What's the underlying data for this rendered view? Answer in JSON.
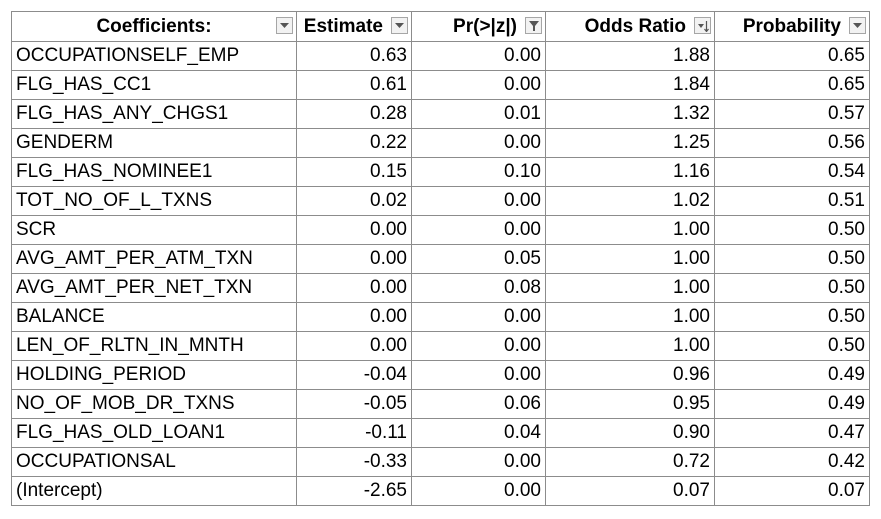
{
  "table": {
    "headers": [
      {
        "label": "Coefficients:",
        "button": "dropdown-arrow-icon"
      },
      {
        "label": "Estimate",
        "button": "dropdown-arrow-icon"
      },
      {
        "label": "Pr(>|z|)",
        "button": "filter-funnel-icon"
      },
      {
        "label": "Odds Ratio",
        "button": "sort-descending-icon"
      },
      {
        "label": "Probability",
        "button": "dropdown-arrow-icon"
      }
    ],
    "rows": [
      [
        "OCCUPATIONSELF_EMP",
        "0.63",
        "0.00",
        "1.88",
        "0.65"
      ],
      [
        "FLG_HAS_CC1",
        "0.61",
        "0.00",
        "1.84",
        "0.65"
      ],
      [
        "FLG_HAS_ANY_CHGS1",
        "0.28",
        "0.01",
        "1.32",
        "0.57"
      ],
      [
        "GENDERM",
        "0.22",
        "0.00",
        "1.25",
        "0.56"
      ],
      [
        "FLG_HAS_NOMINEE1",
        "0.15",
        "0.10",
        "1.16",
        "0.54"
      ],
      [
        "TOT_NO_OF_L_TXNS",
        "0.02",
        "0.00",
        "1.02",
        "0.51"
      ],
      [
        "SCR",
        "0.00",
        "0.00",
        "1.00",
        "0.50"
      ],
      [
        "AVG_AMT_PER_ATM_TXN",
        "0.00",
        "0.05",
        "1.00",
        "0.50"
      ],
      [
        "AVG_AMT_PER_NET_TXN",
        "0.00",
        "0.08",
        "1.00",
        "0.50"
      ],
      [
        "BALANCE",
        "0.00",
        "0.00",
        "1.00",
        "0.50"
      ],
      [
        "LEN_OF_RLTN_IN_MNTH",
        "0.00",
        "0.00",
        "1.00",
        "0.50"
      ],
      [
        "HOLDING_PERIOD",
        "-0.04",
        "0.00",
        "0.96",
        "0.49"
      ],
      [
        "NO_OF_MOB_DR_TXNS",
        "-0.05",
        "0.06",
        "0.95",
        "0.49"
      ],
      [
        "FLG_HAS_OLD_LOAN1",
        "-0.11",
        "0.04",
        "0.90",
        "0.47"
      ],
      [
        "OCCUPATIONSAL",
        "-0.33",
        "0.00",
        "0.72",
        "0.42"
      ],
      [
        "(Intercept)",
        "-2.65",
        "0.00",
        "0.07",
        "0.07"
      ]
    ]
  }
}
